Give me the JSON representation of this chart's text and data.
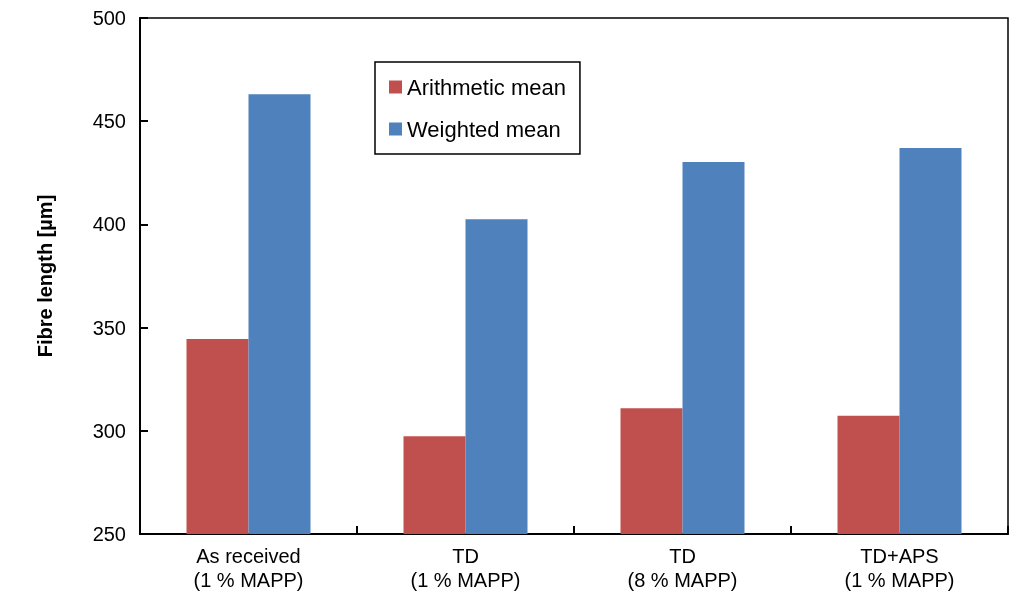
{
  "chart_data": {
    "type": "bar",
    "ylabel": "Fibre length [µm]",
    "categories": [
      "As received\n(1 % MAPP)",
      "TD\n(1 % MAPP)",
      "TD\n(8 % MAPP)",
      "TD+APS\n(1 % MAPP)"
    ],
    "series": [
      {
        "name": "Arithmetic mean",
        "color": "#c0504d",
        "values": [
          344.5,
          297.3,
          310.9,
          307.3
        ]
      },
      {
        "name": "Weighted mean",
        "color": "#4f81bd",
        "values": [
          463,
          402.5,
          430.2,
          437
        ]
      }
    ],
    "ylim": [
      250,
      500
    ],
    "yticks": [
      250,
      300,
      350,
      400,
      450,
      500
    ],
    "grid": false,
    "legend": "top"
  }
}
